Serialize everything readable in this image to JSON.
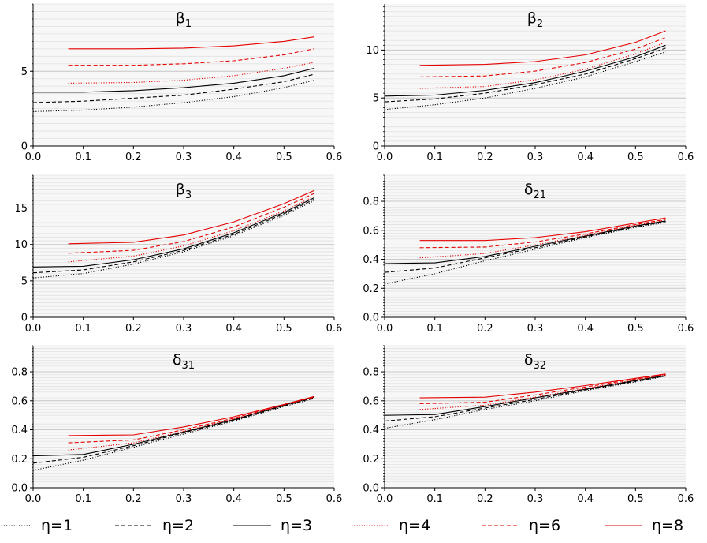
{
  "chart_data": {
    "type": "line",
    "legend_position": "bottom",
    "grid": true,
    "legend": [
      {
        "label": "η=1",
        "color": "#000000",
        "dash": "dotted"
      },
      {
        "label": "η=2",
        "color": "#000000",
        "dash": "dashed"
      },
      {
        "label": "η=3",
        "color": "#000000",
        "dash": "solid"
      },
      {
        "label": "η=4",
        "color": "#e60000",
        "dash": "dotted"
      },
      {
        "label": "η=6",
        "color": "#e60000",
        "dash": "dashed"
      },
      {
        "label": "η=8",
        "color": "#e60000",
        "dash": "solid"
      }
    ],
    "panels": [
      {
        "title": "β",
        "subscript": "1",
        "xlim": [
          0,
          0.6
        ],
        "ylim": [
          0,
          9.5
        ],
        "xticks": [
          "0.0",
          "0.1",
          "0.2",
          "0.3",
          "0.4",
          "0.5",
          "0.6"
        ],
        "yticks": [
          {
            "v": 0,
            "label": "0"
          },
          {
            "v": 5,
            "label": "5"
          }
        ],
        "series": [
          {
            "eta": "η=1",
            "x": [
              0,
              0.1,
              0.2,
              0.3,
              0.4,
              0.5,
              0.56
            ],
            "y": [
              2.3,
              2.4,
              2.6,
              2.9,
              3.3,
              3.9,
              4.4
            ]
          },
          {
            "eta": "η=2",
            "x": [
              0,
              0.1,
              0.2,
              0.3,
              0.4,
              0.5,
              0.56
            ],
            "y": [
              2.9,
              3.0,
              3.2,
              3.4,
              3.8,
              4.3,
              4.8
            ]
          },
          {
            "eta": "η=3",
            "x": [
              0,
              0.1,
              0.2,
              0.3,
              0.4,
              0.5,
              0.56
            ],
            "y": [
              3.6,
              3.6,
              3.7,
              3.9,
              4.2,
              4.7,
              5.2
            ]
          },
          {
            "eta": "η=4",
            "x": [
              0.07,
              0.2,
              0.3,
              0.4,
              0.5,
              0.56
            ],
            "y": [
              4.2,
              4.25,
              4.4,
              4.7,
              5.2,
              5.6
            ]
          },
          {
            "eta": "η=6",
            "x": [
              0.07,
              0.2,
              0.3,
              0.4,
              0.5,
              0.56
            ],
            "y": [
              5.4,
              5.4,
              5.5,
              5.7,
              6.1,
              6.5
            ]
          },
          {
            "eta": "η=8",
            "x": [
              0.07,
              0.2,
              0.3,
              0.4,
              0.5,
              0.56
            ],
            "y": [
              6.5,
              6.5,
              6.55,
              6.7,
              7.0,
              7.3
            ]
          }
        ]
      },
      {
        "title": "β",
        "subscript": "2",
        "xlim": [
          0,
          0.6
        ],
        "ylim": [
          0,
          14.8
        ],
        "xticks": [
          "0.0",
          "0.1",
          "0.2",
          "0.3",
          "0.4",
          "0.5",
          "0.6"
        ],
        "yticks": [
          {
            "v": 0,
            "label": "0"
          },
          {
            "v": 5,
            "label": "5"
          },
          {
            "v": 10,
            "label": "10"
          }
        ],
        "series": [
          {
            "eta": "η=1",
            "x": [
              0,
              0.1,
              0.2,
              0.3,
              0.4,
              0.5,
              0.56
            ],
            "y": [
              3.8,
              4.3,
              5.0,
              6.0,
              7.2,
              8.8,
              9.8
            ]
          },
          {
            "eta": "η=2",
            "x": [
              0,
              0.1,
              0.2,
              0.3,
              0.4,
              0.5,
              0.56
            ],
            "y": [
              4.6,
              4.9,
              5.5,
              6.4,
              7.5,
              9.1,
              10.2
            ]
          },
          {
            "eta": "η=3",
            "x": [
              0,
              0.1,
              0.2,
              0.3,
              0.4,
              0.5,
              0.56
            ],
            "y": [
              5.2,
              5.3,
              5.8,
              6.6,
              7.8,
              9.3,
              10.5
            ]
          },
          {
            "eta": "η=4",
            "x": [
              0.07,
              0.2,
              0.3,
              0.4,
              0.5,
              0.56
            ],
            "y": [
              6.0,
              6.2,
              6.9,
              8.0,
              9.6,
              10.8
            ]
          },
          {
            "eta": "η=6",
            "x": [
              0.07,
              0.2,
              0.3,
              0.4,
              0.5,
              0.56
            ],
            "y": [
              7.2,
              7.3,
              7.8,
              8.7,
              10.1,
              11.3
            ]
          },
          {
            "eta": "η=8",
            "x": [
              0.07,
              0.2,
              0.3,
              0.4,
              0.5,
              0.56
            ],
            "y": [
              8.4,
              8.5,
              8.8,
              9.5,
              10.8,
              12.0
            ]
          }
        ]
      },
      {
        "title": "β",
        "subscript": "3",
        "xlim": [
          0,
          0.6
        ],
        "ylim": [
          0,
          19.5
        ],
        "xticks": [
          "0.0",
          "0.1",
          "0.2",
          "0.3",
          "0.4",
          "0.5",
          "0.6"
        ],
        "yticks": [
          {
            "v": 0,
            "label": "0"
          },
          {
            "v": 5,
            "label": "5"
          },
          {
            "v": 10,
            "label": "10"
          },
          {
            "v": 15,
            "label": "15"
          }
        ],
        "series": [
          {
            "eta": "η=1",
            "x": [
              0,
              0.1,
              0.2,
              0.3,
              0.4,
              0.5,
              0.56
            ],
            "y": [
              5.4,
              6.0,
              7.3,
              9.0,
              11.2,
              14.0,
              16.0
            ]
          },
          {
            "eta": "η=2",
            "x": [
              0,
              0.1,
              0.2,
              0.3,
              0.4,
              0.5,
              0.56
            ],
            "y": [
              6.1,
              6.5,
              7.6,
              9.2,
              11.4,
              14.2,
              16.2
            ]
          },
          {
            "eta": "η=3",
            "x": [
              0,
              0.1,
              0.2,
              0.3,
              0.4,
              0.5,
              0.56
            ],
            "y": [
              6.9,
              7.0,
              7.9,
              9.4,
              11.6,
              14.4,
              16.4
            ]
          },
          {
            "eta": "η=4",
            "x": [
              0.07,
              0.2,
              0.3,
              0.4,
              0.5,
              0.56
            ],
            "y": [
              7.6,
              8.4,
              9.8,
              11.9,
              14.6,
              16.6
            ]
          },
          {
            "eta": "η=6",
            "x": [
              0.07,
              0.2,
              0.3,
              0.4,
              0.5,
              0.56
            ],
            "y": [
              8.8,
              9.2,
              10.4,
              12.4,
              15.1,
              17.0
            ]
          },
          {
            "eta": "η=8",
            "x": [
              0.07,
              0.2,
              0.3,
              0.4,
              0.5,
              0.56
            ],
            "y": [
              10.1,
              10.3,
              11.3,
              13.1,
              15.6,
              17.4
            ]
          }
        ]
      },
      {
        "title": "δ",
        "subscript": "21",
        "xlim": [
          0,
          0.6
        ],
        "ylim": [
          0,
          0.98
        ],
        "xticks": [
          "0.0",
          "0.1",
          "0.2",
          "0.3",
          "0.4",
          "0.5",
          "0.6"
        ],
        "yticks": [
          {
            "v": 0,
            "label": "0.0"
          },
          {
            "v": 0.2,
            "label": "0.2"
          },
          {
            "v": 0.4,
            "label": "0.4"
          },
          {
            "v": 0.6,
            "label": "0.6"
          },
          {
            "v": 0.8,
            "label": "0.8"
          }
        ],
        "series": [
          {
            "eta": "η=1",
            "x": [
              0,
              0.1,
              0.2,
              0.3,
              0.4,
              0.5,
              0.56
            ],
            "y": [
              0.23,
              0.3,
              0.39,
              0.47,
              0.55,
              0.62,
              0.655
            ]
          },
          {
            "eta": "η=2",
            "x": [
              0,
              0.1,
              0.2,
              0.3,
              0.4,
              0.5,
              0.56
            ],
            "y": [
              0.31,
              0.34,
              0.41,
              0.48,
              0.555,
              0.625,
              0.66
            ]
          },
          {
            "eta": "η=3",
            "x": [
              0,
              0.1,
              0.2,
              0.3,
              0.4,
              0.5,
              0.56
            ],
            "y": [
              0.37,
              0.375,
              0.42,
              0.49,
              0.56,
              0.63,
              0.665
            ]
          },
          {
            "eta": "η=4",
            "x": [
              0.07,
              0.2,
              0.3,
              0.4,
              0.5,
              0.56
            ],
            "y": [
              0.41,
              0.44,
              0.5,
              0.565,
              0.635,
              0.67
            ]
          },
          {
            "eta": "η=6",
            "x": [
              0.07,
              0.2,
              0.3,
              0.4,
              0.5,
              0.56
            ],
            "y": [
              0.48,
              0.485,
              0.52,
              0.575,
              0.64,
              0.675
            ]
          },
          {
            "eta": "η=8",
            "x": [
              0.07,
              0.2,
              0.3,
              0.4,
              0.5,
              0.56
            ],
            "y": [
              0.53,
              0.53,
              0.55,
              0.59,
              0.65,
              0.685
            ]
          }
        ]
      },
      {
        "title": "δ",
        "subscript": "31",
        "xlim": [
          0,
          0.6
        ],
        "ylim": [
          0,
          0.98
        ],
        "xticks": [
          "0.0",
          "0.1",
          "0.2",
          "0.3",
          "0.4",
          "0.5",
          "0.6"
        ],
        "yticks": [
          {
            "v": 0,
            "label": "0.0"
          },
          {
            "v": 0.2,
            "label": "0.2"
          },
          {
            "v": 0.4,
            "label": "0.4"
          },
          {
            "v": 0.6,
            "label": "0.6"
          },
          {
            "v": 0.8,
            "label": "0.8"
          }
        ],
        "series": [
          {
            "eta": "η=1",
            "x": [
              0,
              0.1,
              0.2,
              0.3,
              0.4,
              0.5,
              0.56
            ],
            "y": [
              0.12,
              0.19,
              0.28,
              0.37,
              0.46,
              0.56,
              0.615
            ]
          },
          {
            "eta": "η=2",
            "x": [
              0,
              0.1,
              0.2,
              0.3,
              0.4,
              0.5,
              0.56
            ],
            "y": [
              0.17,
              0.21,
              0.29,
              0.38,
              0.465,
              0.565,
              0.62
            ]
          },
          {
            "eta": "η=3",
            "x": [
              0,
              0.1,
              0.2,
              0.3,
              0.4,
              0.5,
              0.56
            ],
            "y": [
              0.22,
              0.23,
              0.3,
              0.385,
              0.47,
              0.57,
              0.625
            ]
          },
          {
            "eta": "η=4",
            "x": [
              0.07,
              0.2,
              0.3,
              0.4,
              0.5,
              0.56
            ],
            "y": [
              0.26,
              0.31,
              0.39,
              0.475,
              0.57,
              0.625
            ]
          },
          {
            "eta": "η=6",
            "x": [
              0.07,
              0.2,
              0.3,
              0.4,
              0.5,
              0.56
            ],
            "y": [
              0.31,
              0.33,
              0.4,
              0.48,
              0.575,
              0.625
            ]
          },
          {
            "eta": "η=8",
            "x": [
              0.07,
              0.2,
              0.3,
              0.4,
              0.5,
              0.56
            ],
            "y": [
              0.36,
              0.365,
              0.42,
              0.49,
              0.575,
              0.63
            ]
          }
        ]
      },
      {
        "title": "δ",
        "subscript": "32",
        "xlim": [
          0,
          0.6
        ],
        "ylim": [
          0,
          0.98
        ],
        "xticks": [
          "0.0",
          "0.1",
          "0.2",
          "0.3",
          "0.4",
          "0.5",
          "0.6"
        ],
        "yticks": [
          {
            "v": 0,
            "label": "0.0"
          },
          {
            "v": 0.2,
            "label": "0.2"
          },
          {
            "v": 0.4,
            "label": "0.4"
          },
          {
            "v": 0.6,
            "label": "0.6"
          },
          {
            "v": 0.8,
            "label": "0.8"
          }
        ],
        "series": [
          {
            "eta": "η=1",
            "x": [
              0,
              0.1,
              0.2,
              0.3,
              0.4,
              0.5,
              0.56
            ],
            "y": [
              0.41,
              0.47,
              0.54,
              0.6,
              0.67,
              0.73,
              0.77
            ]
          },
          {
            "eta": "η=2",
            "x": [
              0,
              0.1,
              0.2,
              0.3,
              0.4,
              0.5,
              0.56
            ],
            "y": [
              0.46,
              0.49,
              0.55,
              0.61,
              0.675,
              0.735,
              0.772
            ]
          },
          {
            "eta": "η=3",
            "x": [
              0,
              0.1,
              0.2,
              0.3,
              0.4,
              0.5,
              0.56
            ],
            "y": [
              0.5,
              0.505,
              0.56,
              0.62,
              0.68,
              0.74,
              0.775
            ]
          },
          {
            "eta": "η=4",
            "x": [
              0.07,
              0.2,
              0.3,
              0.4,
              0.5,
              0.56
            ],
            "y": [
              0.54,
              0.57,
              0.625,
              0.685,
              0.745,
              0.778
            ]
          },
          {
            "eta": "η=6",
            "x": [
              0.07,
              0.2,
              0.3,
              0.4,
              0.5,
              0.56
            ],
            "y": [
              0.58,
              0.59,
              0.64,
              0.695,
              0.75,
              0.78
            ]
          },
          {
            "eta": "η=8",
            "x": [
              0.07,
              0.2,
              0.3,
              0.4,
              0.5,
              0.56
            ],
            "y": [
              0.62,
              0.625,
              0.66,
              0.705,
              0.755,
              0.785
            ]
          }
        ]
      }
    ]
  }
}
